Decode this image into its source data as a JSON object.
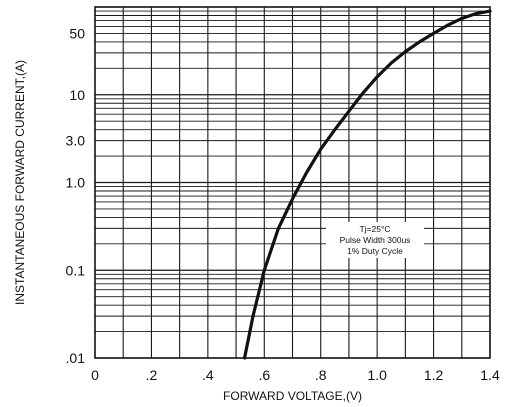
{
  "chart_data": {
    "type": "line",
    "xlabel": "FORWARD VOLTAGE,(V)",
    "ylabel": "INSTANTANEOUS FORWARD CURRENT,(A)",
    "x_scale": "linear",
    "y_scale": "log",
    "xlim": [
      0,
      1.4
    ],
    "ylim": [
      0.01,
      100
    ],
    "x_ticks": [
      0,
      0.2,
      0.4,
      0.6,
      0.8,
      1.0,
      1.2,
      1.4
    ],
    "x_tick_labels": [
      "0",
      ".2",
      ".4",
      ".6",
      ".8",
      "1.0",
      "1.2",
      "1.4"
    ],
    "y_ticks": [
      0.01,
      0.1,
      1.0,
      3.0,
      10,
      50
    ],
    "y_tick_labels": [
      ".01",
      "0.1",
      "1.0",
      "3.0",
      "10",
      "50"
    ],
    "grid": true,
    "series": [
      {
        "x": [
          0.53,
          0.56,
          0.6,
          0.65,
          0.7,
          0.75,
          0.8,
          0.85,
          0.9,
          0.95,
          1.0,
          1.05,
          1.1,
          1.15,
          1.2,
          1.25,
          1.3,
          1.35,
          1.4
        ],
        "y": [
          0.01,
          0.03,
          0.1,
          0.3,
          0.65,
          1.3,
          2.4,
          4.0,
          6.5,
          10.5,
          16,
          23,
          31,
          40,
          50,
          62,
          74,
          84,
          90
        ]
      }
    ],
    "annotation": [
      "Tj=25°C",
      "Pulse Width 300us",
      "1% Duty Cycle"
    ],
    "colors": {
      "curve": "#111111",
      "grid": "#1a1a1a",
      "background": "#ffffff"
    }
  }
}
